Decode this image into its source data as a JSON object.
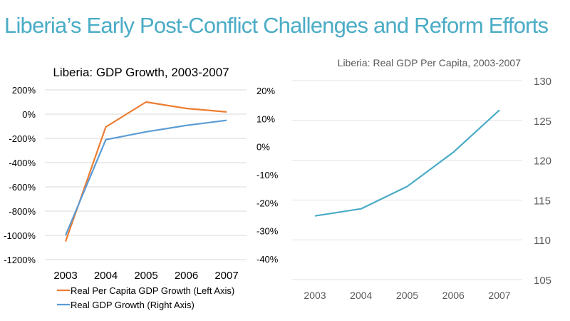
{
  "slide": {
    "title": "Liberia’s Early Post-Conflict Challenges and Reform Efforts",
    "title_color": "#4bacc6"
  },
  "chart_data": [
    {
      "type": "line",
      "title": "Liberia: GDP Growth, 2003-2007",
      "categories": [
        "2003",
        "2004",
        "2005",
        "2006",
        "2007"
      ],
      "left_axis": {
        "ticks": [
          "200%",
          "0%",
          "-200%",
          "-400%",
          "-600%",
          "-800%",
          "-1000%",
          "-1200%"
        ],
        "ylim": [
          -1200,
          200
        ]
      },
      "right_axis": {
        "ticks": [
          "20%",
          "10%",
          "0%",
          "-10%",
          "-20%",
          "-30%",
          "-40%"
        ],
        "ylim": [
          -40,
          20
        ]
      },
      "grid": true,
      "legend": "bottom",
      "series": [
        {
          "name": "Real Per Capita GDP Growth (Left Axis)",
          "axis": "left",
          "color": "#ed7d31",
          "values": [
            -1050,
            -106,
            100,
            47,
            18
          ]
        },
        {
          "name": "Real GDP Growth (Right Axis)",
          "axis": "right",
          "color": "#5b9bd5",
          "values": [
            -31.6,
            2.5,
            5.3,
            7.6,
            9.4
          ]
        }
      ]
    },
    {
      "type": "line",
      "title": "Liberia: Real GDP Per Capita, 2003-2007",
      "categories": [
        "2003",
        "2004",
        "2005",
        "2006",
        "2007"
      ],
      "right_axis": {
        "ticks": [
          "130",
          "125",
          "120",
          "115",
          "110",
          "105"
        ],
        "ylim": [
          105,
          130
        ]
      },
      "grid": true,
      "series": [
        {
          "color": "#4bacc6",
          "values": [
            113.0,
            113.9,
            116.7,
            121.0,
            126.3
          ]
        }
      ]
    }
  ]
}
